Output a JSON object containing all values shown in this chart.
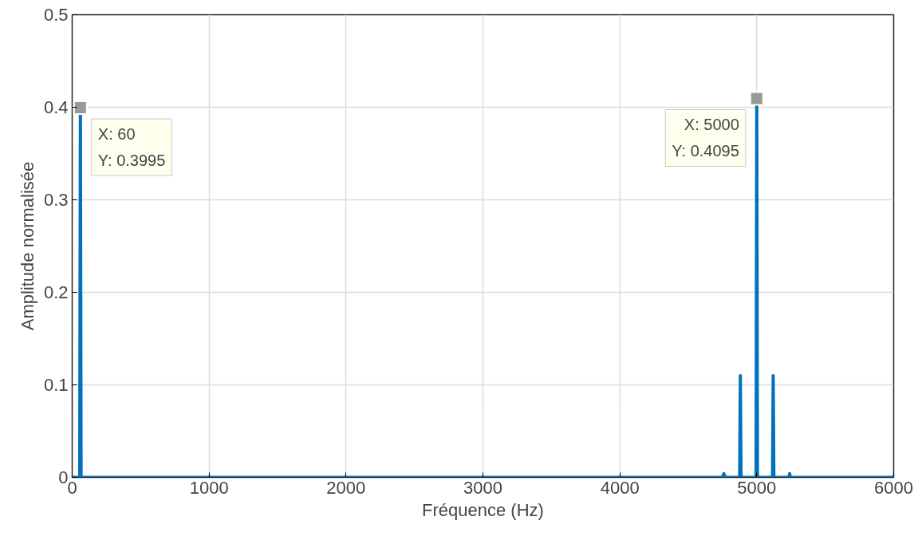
{
  "chart_data": {
    "type": "line",
    "xlabel": "Fréquence (Hz)",
    "ylabel": "Amplitude normalisée",
    "x": [
      0,
      55,
      60,
      65,
      4750,
      4760,
      4770,
      4875,
      4880,
      4885,
      4995,
      5000,
      5005,
      5115,
      5120,
      5125,
      5235,
      5240,
      5245,
      6000
    ],
    "series": [
      {
        "color": "#0072bd",
        "values": [
          0,
          0,
          0.3995,
          0,
          0,
          0.004,
          0,
          0,
          0.11,
          0,
          0,
          0.4095,
          0,
          0,
          0.11,
          0,
          0,
          0.004,
          0,
          0
        ]
      }
    ],
    "xlim": [
      0,
      6000
    ],
    "ylim": [
      0,
      0.5
    ],
    "xticks": [
      0,
      1000,
      2000,
      3000,
      4000,
      5000,
      6000
    ],
    "yticks": [
      0,
      0.1,
      0.2,
      0.3,
      0.4,
      0.5
    ],
    "grid": true,
    "marker": "none",
    "line_style": "solid",
    "annotations": [
      {
        "text": "X: 60\nY: 0.3995",
        "x": 60,
        "y": 0.3995
      },
      {
        "text": "X: 5000\nY: 0.4095",
        "x": 5000,
        "y": 0.4095
      }
    ]
  }
}
